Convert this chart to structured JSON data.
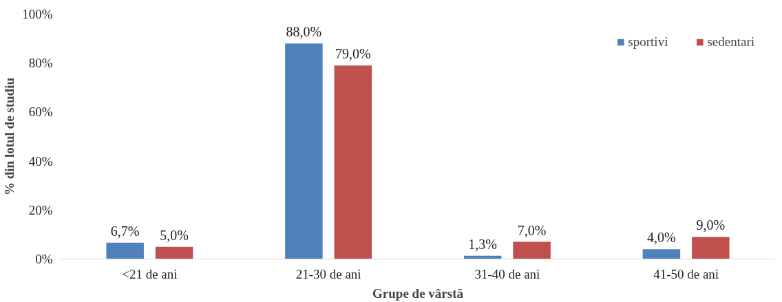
{
  "chart_data": {
    "type": "bar",
    "xlabel": "Grupe de vârstă",
    "ylabel": "% din lotul de studiu",
    "categories": [
      "<21 de ani",
      "21-30 de ani",
      "31-40 de ani",
      "41-50 de ani"
    ],
    "series": [
      {
        "name": "sportivi",
        "color": "#4f81bd",
        "values": [
          6.7,
          88.0,
          1.3,
          4.0
        ],
        "value_labels": [
          "6,7%",
          "88,0%",
          "1,3%",
          "4,0%"
        ]
      },
      {
        "name": "sedentari",
        "color": "#c0504d",
        "values": [
          5.0,
          79.0,
          7.0,
          9.0
        ],
        "value_labels": [
          "5,0%",
          "79,0%",
          "7,0%",
          "9,0%"
        ]
      }
    ],
    "ylim": [
      0,
      100
    ],
    "yticks": [
      {
        "value": 0,
        "label": "0%"
      },
      {
        "value": 20,
        "label": "20%"
      },
      {
        "value": 40,
        "label": "40%"
      },
      {
        "value": 60,
        "label": "60%"
      },
      {
        "value": 80,
        "label": "80%"
      },
      {
        "value": 100,
        "label": "100%"
      }
    ],
    "legend": "top right",
    "grid": false
  }
}
